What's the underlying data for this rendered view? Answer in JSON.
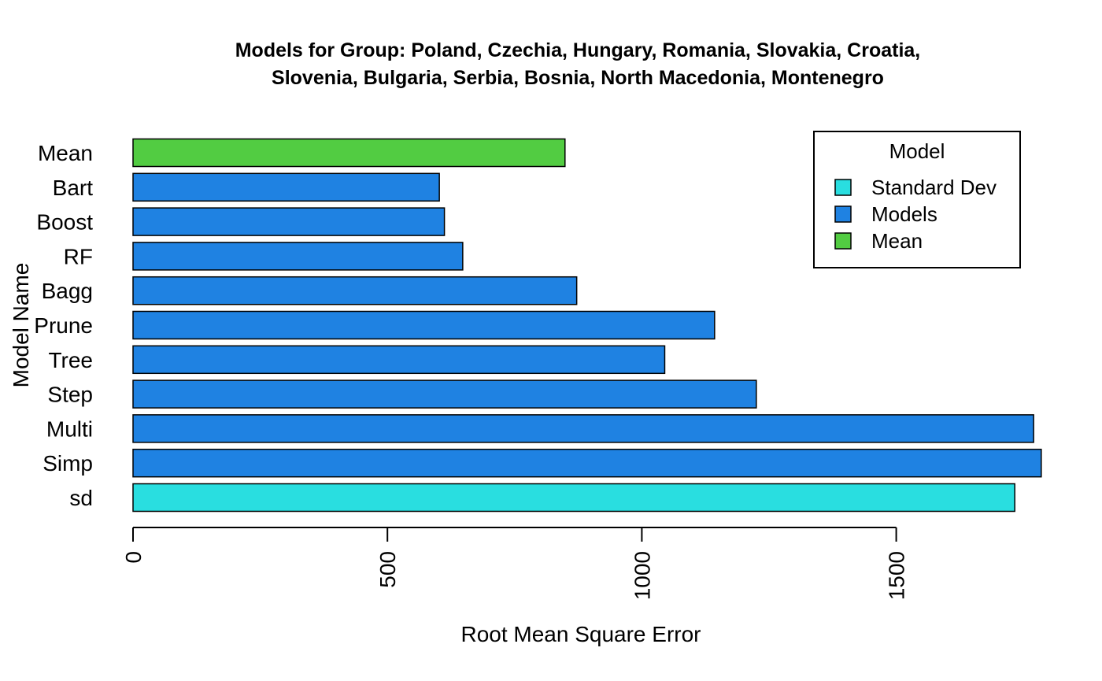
{
  "chart_data": {
    "type": "bar",
    "orientation": "horizontal",
    "title_lines": [
      "Models for Group: Poland, Czechia, Hungary, Romania, Slovakia, Croatia,",
      "Slovenia, Bulgaria, Serbia, Bosnia, North Macedonia, Montenegro"
    ],
    "xlabel": "Root Mean Square Error",
    "ylabel": "Model Name",
    "xlim": [
      0,
      1800
    ],
    "xticks": [
      0,
      500,
      1000,
      1500
    ],
    "xtick_labels": [
      "0",
      "500",
      "1000",
      "1500"
    ],
    "categories": [
      "sd",
      "Simp",
      "Multi",
      "Step",
      "Tree",
      "Prune",
      "Bagg",
      "RF",
      "Boost",
      "Bart",
      "Mean"
    ],
    "values": [
      1733,
      1785,
      1770,
      1225,
      1045,
      1143,
      872,
      648,
      612,
      602,
      849
    ],
    "groups": [
      "Standard Dev",
      "Models",
      "Models",
      "Models",
      "Models",
      "Models",
      "Models",
      "Models",
      "Models",
      "Models",
      "Mean"
    ],
    "colors": {
      "Standard Dev": "#29dee0",
      "Models": "#1f82e2",
      "Mean": "#52cc42"
    },
    "legend": {
      "title": "Model",
      "position": "top-right",
      "entries": [
        "Standard Dev",
        "Models",
        "Mean"
      ]
    },
    "grid": false
  }
}
